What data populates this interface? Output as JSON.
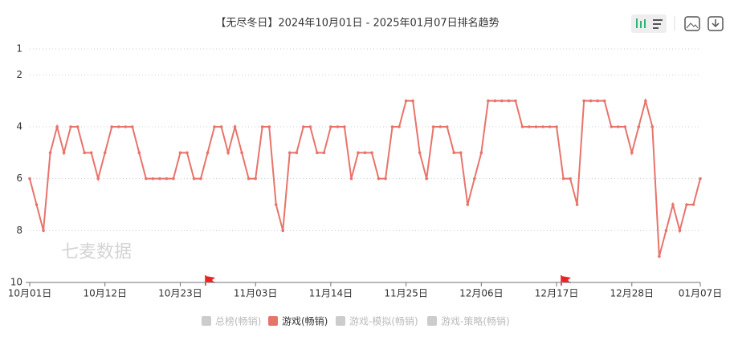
{
  "chart_data": {
    "type": "line",
    "title": "【无尽冬日】2024年10月01日 - 2025年01月07日排名趋势",
    "watermark": "七麦数据",
    "categories": [
      "10月01日",
      null,
      null,
      null,
      null,
      null,
      null,
      null,
      null,
      null,
      null,
      "10月12日",
      null,
      null,
      null,
      null,
      null,
      null,
      null,
      null,
      null,
      null,
      "10月23日",
      null,
      null,
      null,
      null,
      null,
      null,
      null,
      null,
      null,
      null,
      "11月03日",
      null,
      null,
      null,
      null,
      null,
      null,
      null,
      null,
      null,
      null,
      "11月14日",
      null,
      null,
      null,
      null,
      null,
      null,
      null,
      null,
      null,
      null,
      "11月25日",
      null,
      null,
      null,
      null,
      null,
      null,
      null,
      null,
      null,
      null,
      "12月06日",
      null,
      null,
      null,
      null,
      null,
      null,
      null,
      null,
      null,
      null,
      "12月17日",
      null,
      null,
      null,
      null,
      null,
      null,
      null,
      null,
      null,
      null,
      "12月28日",
      null,
      null,
      null,
      null,
      null,
      null,
      null,
      null,
      null,
      "01月07日"
    ],
    "series": [
      {
        "name": "总榜(畅销)",
        "color": "#cccccc",
        "visible": false
      },
      {
        "name": "游戏(畅销)",
        "color": "#e8736b",
        "visible": true,
        "values": [
          6,
          7,
          8,
          5,
          4,
          5,
          4,
          4,
          5,
          5,
          6,
          5,
          4,
          4,
          4,
          4,
          5,
          6,
          6,
          6,
          6,
          6,
          5,
          5,
          6,
          6,
          5,
          4,
          4,
          5,
          4,
          5,
          6,
          6,
          4,
          4,
          7,
          8,
          5,
          5,
          4,
          4,
          5,
          5,
          4,
          4,
          4,
          6,
          5,
          5,
          5,
          6,
          6,
          4,
          4,
          3,
          3,
          5,
          6,
          4,
          4,
          4,
          5,
          5,
          7,
          6,
          5,
          3,
          3,
          3,
          3,
          3,
          4,
          4,
          4,
          4,
          4,
          4,
          6,
          6,
          7,
          3,
          3,
          3,
          3,
          4,
          4,
          4,
          5,
          4,
          3,
          4,
          9,
          8,
          7,
          8,
          7,
          7,
          6
        ]
      },
      {
        "name": "游戏-模拟(畅销)",
        "color": "#cccccc",
        "visible": false
      },
      {
        "name": "游戏-策略(畅销)",
        "color": "#cccccc",
        "visible": false
      }
    ],
    "ylim": [
      1,
      10
    ],
    "y_inverted": true,
    "yticks": [
      1,
      2,
      4,
      6,
      8,
      10
    ],
    "grid": true
  }
}
